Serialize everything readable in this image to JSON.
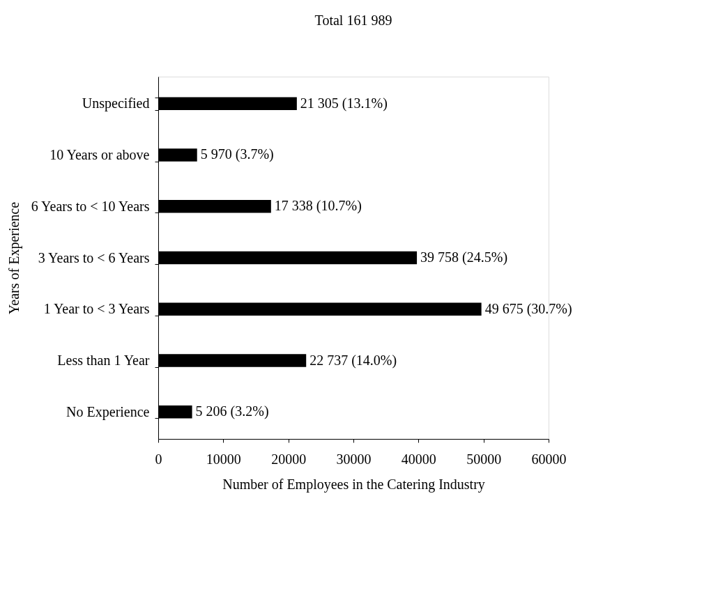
{
  "chart_data": {
    "type": "bar",
    "orientation": "horizontal",
    "title": "Total 161 989",
    "xlabel": "Number of Employees in the Catering Industry",
    "ylabel": "Years of Experience",
    "categories": [
      "Unspecified",
      "10 Years or above",
      "6 Years to < 10 Years",
      "3 Years to < 6 Years",
      "1 Year to < 3 Years",
      "Less than 1 Year",
      "No Experience"
    ],
    "values": [
      21305,
      5970,
      17338,
      39758,
      49675,
      22737,
      5206
    ],
    "value_labels": [
      "21 305 (13.1%)",
      "5 970 (3.7%)",
      "17 338 (10.7%)",
      "39 758 (24.5%)",
      "49 675 (30.7%)",
      "22 737 (14.0%)",
      "5 206 (3.2%)"
    ],
    "color": "#000000",
    "xlim": [
      0,
      60000
    ],
    "xticks": [
      0,
      10000,
      20000,
      30000,
      40000,
      50000,
      60000
    ],
    "grid": false
  }
}
